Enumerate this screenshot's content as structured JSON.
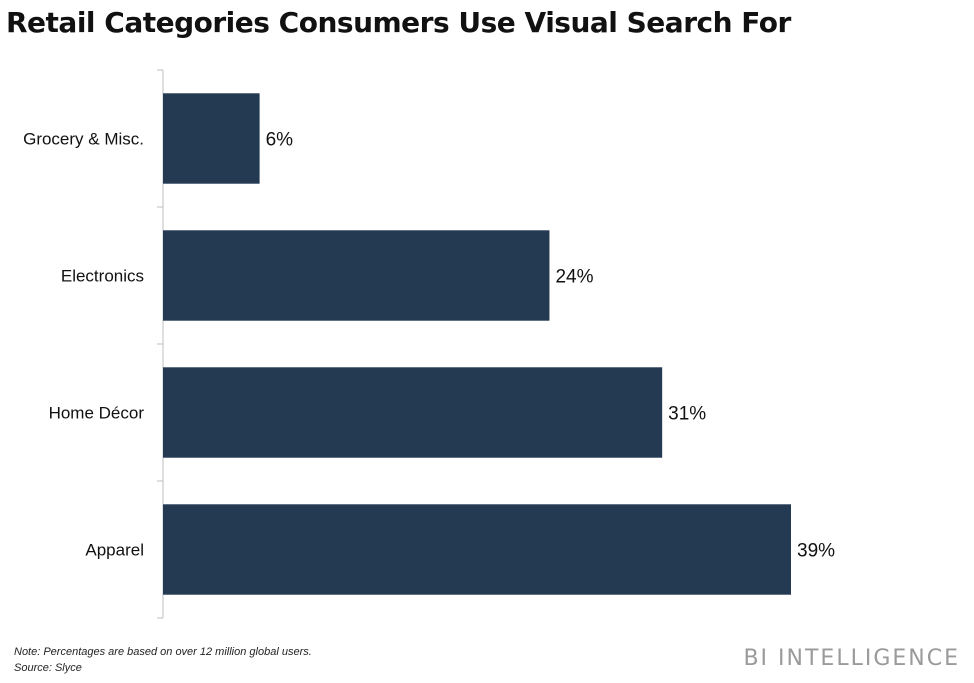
{
  "chart_data": {
    "type": "bar",
    "orientation": "horizontal",
    "title": "Retail Categories Consumers Use Visual Search For",
    "categories": [
      "Grocery & Misc.",
      "Electronics",
      "Home Décor",
      "Apparel"
    ],
    "values": [
      6,
      24,
      31,
      39
    ],
    "value_labels": [
      "6%",
      "24%",
      "31%",
      "39%"
    ],
    "xlim": [
      0,
      40
    ],
    "grid": false,
    "legend": "none",
    "bar_color": "#243a53"
  },
  "footer": {
    "note": "Note: Percentages are based on over 12 million global users.",
    "source": "Source: Slyce",
    "brand": "BI INTELLIGENCE"
  }
}
